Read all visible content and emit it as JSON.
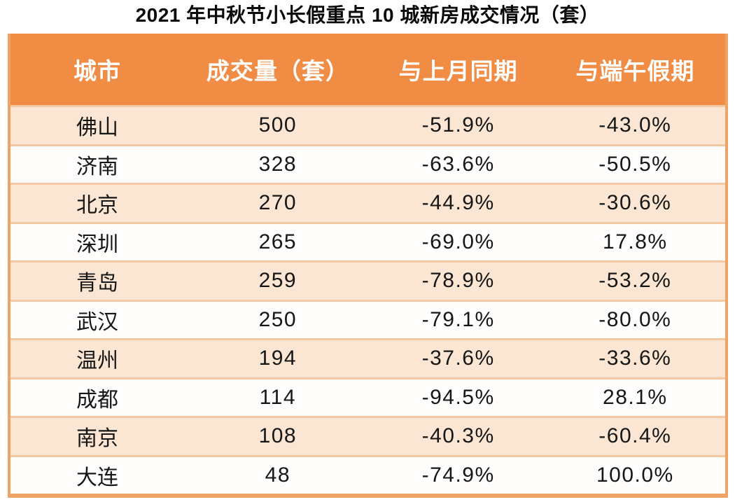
{
  "title": "2021 年中秋节小长假重点 10 城新房成交情况（套）",
  "table": {
    "headers": [
      {
        "label": "城市"
      },
      {
        "label": "成交量（套）"
      },
      {
        "label": "与上月同期"
      },
      {
        "label": "与端午假期"
      }
    ],
    "rows": [
      {
        "city": "佛山",
        "volume": "500",
        "vs_last_month": "-51.9%",
        "vs_duanwu": "-43.0%"
      },
      {
        "city": "济南",
        "volume": "328",
        "vs_last_month": "-63.6%",
        "vs_duanwu": "-50.5%"
      },
      {
        "city": "北京",
        "volume": "270",
        "vs_last_month": "-44.9%",
        "vs_duanwu": "-30.6%"
      },
      {
        "city": "深圳",
        "volume": "265",
        "vs_last_month": "-69.0%",
        "vs_duanwu": "17.8%"
      },
      {
        "city": "青岛",
        "volume": "259",
        "vs_last_month": "-78.9%",
        "vs_duanwu": "-53.2%"
      },
      {
        "city": "武汉",
        "volume": "250",
        "vs_last_month": "-79.1%",
        "vs_duanwu": "-80.0%"
      },
      {
        "city": "温州",
        "volume": "194",
        "vs_last_month": "-37.6%",
        "vs_duanwu": "-33.6%"
      },
      {
        "city": "成都",
        "volume": "114",
        "vs_last_month": "-94.5%",
        "vs_duanwu": "28.1%"
      },
      {
        "city": "南京",
        "volume": "108",
        "vs_last_month": "-40.3%",
        "vs_duanwu": "-60.4%"
      },
      {
        "city": "大连",
        "volume": "48",
        "vs_last_month": "-74.9%",
        "vs_duanwu": "100.0%"
      }
    ]
  },
  "colors": {
    "header_bg": "#F08C44",
    "header_text": "#FFFFFF",
    "row_alt_bg": "#FAE6D3",
    "row_bg": "#FEFDFC",
    "outer_border": "#EFA365",
    "row_separator": "#F2C9A2",
    "title_text": "#0A0A0A",
    "cell_text": "#161616"
  },
  "chart_data": {
    "type": "table",
    "title": "2021 年中秋节小长假重点 10 城新房成交情况（套）",
    "columns": [
      "城市",
      "成交量（套）",
      "与上月同期",
      "与端午假期"
    ],
    "rows": [
      [
        "佛山",
        500,
        "-51.9%",
        "-43.0%"
      ],
      [
        "济南",
        328,
        "-63.6%",
        "-50.5%"
      ],
      [
        "北京",
        270,
        "-44.9%",
        "-30.6%"
      ],
      [
        "深圳",
        265,
        "-69.0%",
        "17.8%"
      ],
      [
        "青岛",
        259,
        "-78.9%",
        "-53.2%"
      ],
      [
        "武汉",
        250,
        "-79.1%",
        "-80.0%"
      ],
      [
        "温州",
        194,
        "-37.6%",
        "-33.6%"
      ],
      [
        "成都",
        114,
        "-94.5%",
        "28.1%"
      ],
      [
        "南京",
        108,
        "-40.3%",
        "-60.4%"
      ],
      [
        "大连",
        48,
        "-74.9%",
        "100.0%"
      ]
    ]
  }
}
